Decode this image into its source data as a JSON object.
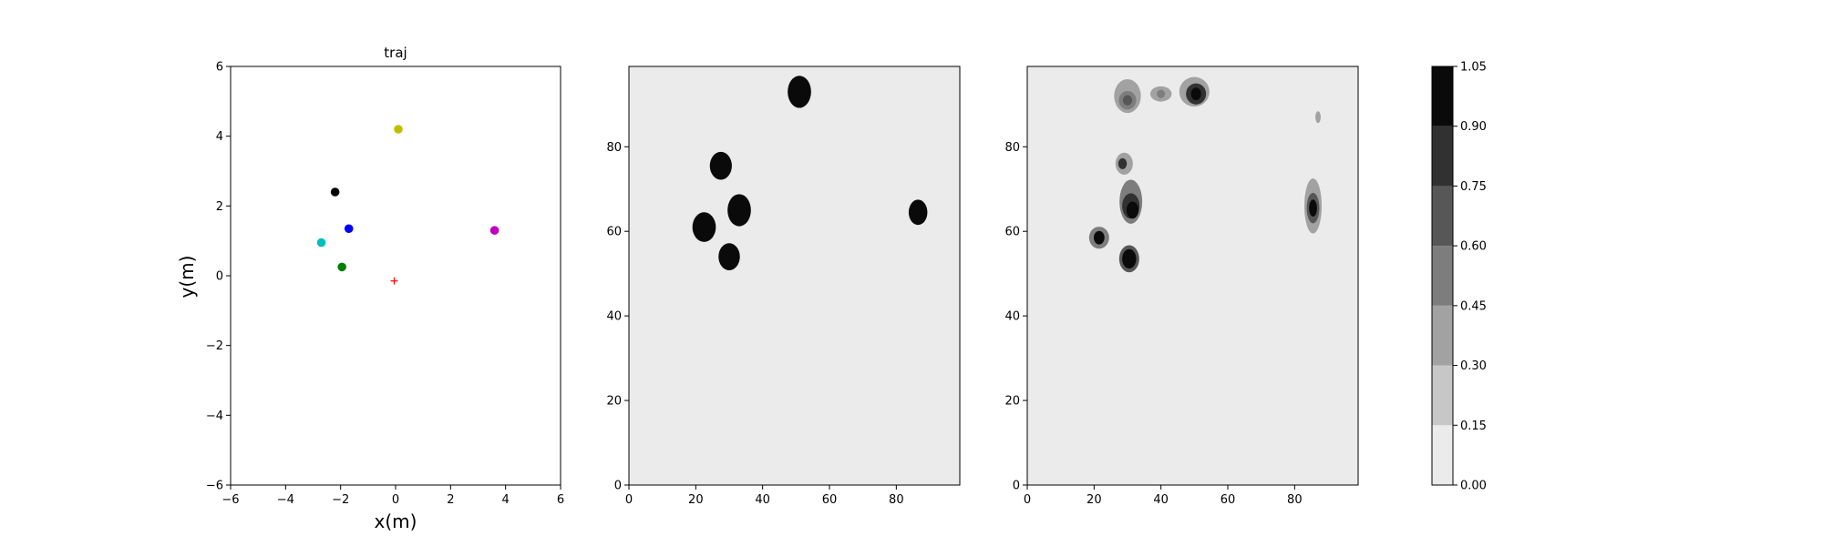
{
  "chart_data": [
    {
      "type": "scatter",
      "title": "traj",
      "xlabel": "x(m)",
      "ylabel": "y(m)",
      "xlim": [
        -6,
        6
      ],
      "ylim": [
        -6,
        6
      ],
      "xticks": [
        -6,
        -4,
        -2,
        0,
        2,
        4,
        6
      ],
      "yticks": [
        -6,
        -4,
        -2,
        0,
        2,
        4,
        6
      ],
      "points": [
        {
          "x": 0.1,
          "y": 4.2,
          "color": "#bfbf00",
          "marker": "dot"
        },
        {
          "x": -2.2,
          "y": 2.4,
          "color": "#000000",
          "marker": "dot"
        },
        {
          "x": -1.7,
          "y": 1.35,
          "color": "#0000ff",
          "marker": "dot"
        },
        {
          "x": -2.7,
          "y": 0.95,
          "color": "#00bfbf",
          "marker": "dot"
        },
        {
          "x": -1.95,
          "y": 0.25,
          "color": "#008000",
          "marker": "dot"
        },
        {
          "x": 3.6,
          "y": 1.3,
          "color": "#bf00bf",
          "marker": "dot"
        },
        {
          "x": -0.05,
          "y": -0.15,
          "color": "#ff0000",
          "marker": "plus"
        }
      ]
    },
    {
      "type": "heatmap",
      "title": "",
      "xlim": [
        0,
        99
      ],
      "ylim": [
        0,
        99
      ],
      "xticks": [
        0,
        20,
        40,
        60,
        80
      ],
      "yticks": [
        0,
        20,
        40,
        60,
        80
      ],
      "background_level": 0.0,
      "blobs": [
        {
          "x": 51,
          "y": 93,
          "rx": 3.5,
          "ry": 3.8,
          "level": 1.0
        },
        {
          "x": 27.5,
          "y": 75.5,
          "rx": 3.3,
          "ry": 3.3,
          "level": 1.0
        },
        {
          "x": 33,
          "y": 65,
          "rx": 3.5,
          "ry": 3.8,
          "level": 1.0
        },
        {
          "x": 22.5,
          "y": 61,
          "rx": 3.5,
          "ry": 3.5,
          "level": 1.0
        },
        {
          "x": 30,
          "y": 54,
          "rx": 3.2,
          "ry": 3.2,
          "level": 1.0
        },
        {
          "x": 86.5,
          "y": 64.5,
          "rx": 2.8,
          "ry": 3.0,
          "level": 1.0
        }
      ]
    },
    {
      "type": "heatmap",
      "title": "",
      "xlim": [
        0,
        99
      ],
      "ylim": [
        0,
        99
      ],
      "xticks": [
        0,
        20,
        40,
        60,
        80
      ],
      "yticks": [
        0,
        20,
        40,
        60,
        80
      ],
      "background_level": 0.0,
      "blobs": [
        {
          "x": 30,
          "y": 92,
          "rx": 4,
          "ry": 4,
          "level": 0.35
        },
        {
          "x": 30,
          "y": 91,
          "rx": 2.6,
          "ry": 2.2,
          "level": 0.55
        },
        {
          "x": 30,
          "y": 91,
          "rx": 1.4,
          "ry": 1.2,
          "level": 0.7
        },
        {
          "x": 40,
          "y": 92.5,
          "rx": 3.2,
          "ry": 1.8,
          "level": 0.3
        },
        {
          "x": 40,
          "y": 92.5,
          "rx": 1.2,
          "ry": 1.0,
          "level": 0.45
        },
        {
          "x": 50,
          "y": 93,
          "rx": 4.5,
          "ry": 3.5,
          "level": 0.35
        },
        {
          "x": 50.5,
          "y": 92.5,
          "rx": 3.0,
          "ry": 2.5,
          "level": 0.8
        },
        {
          "x": 50.5,
          "y": 92.5,
          "rx": 1.5,
          "ry": 1.5,
          "level": 1.0
        },
        {
          "x": 87,
          "y": 87,
          "rx": 0.8,
          "ry": 1.4,
          "level": 0.3
        },
        {
          "x": 29,
          "y": 76,
          "rx": 2.6,
          "ry": 2.6,
          "level": 0.4
        },
        {
          "x": 28.5,
          "y": 76,
          "rx": 1.3,
          "ry": 1.3,
          "level": 0.75
        },
        {
          "x": 30,
          "y": 71,
          "rx": 1.0,
          "ry": 1.0,
          "level": 0.2
        },
        {
          "x": 31,
          "y": 67,
          "rx": 3.4,
          "ry": 5.2,
          "level": 0.45
        },
        {
          "x": 31,
          "y": 66,
          "rx": 2.6,
          "ry": 3.0,
          "level": 0.75
        },
        {
          "x": 31.5,
          "y": 65,
          "rx": 1.8,
          "ry": 2.0,
          "level": 1.0
        },
        {
          "x": 85.5,
          "y": 66,
          "rx": 2.6,
          "ry": 6.5,
          "level": 0.4
        },
        {
          "x": 85.5,
          "y": 65.5,
          "rx": 1.9,
          "ry": 3.6,
          "level": 0.7
        },
        {
          "x": 85.5,
          "y": 65.5,
          "rx": 1.2,
          "ry": 2.0,
          "level": 0.9
        },
        {
          "x": 21.5,
          "y": 58.5,
          "rx": 3.0,
          "ry": 2.6,
          "level": 0.55
        },
        {
          "x": 21.5,
          "y": 58.5,
          "rx": 1.6,
          "ry": 1.6,
          "level": 0.95
        },
        {
          "x": 30.5,
          "y": 53.5,
          "rx": 3.0,
          "ry": 3.2,
          "level": 0.6
        },
        {
          "x": 30.5,
          "y": 53.5,
          "rx": 2.1,
          "ry": 2.3,
          "level": 1.0
        }
      ]
    },
    {
      "type": "colorbar",
      "title": "",
      "boundaries": [
        0.0,
        0.15,
        0.3,
        0.45,
        0.6,
        0.75,
        0.9,
        1.05
      ],
      "tick_labels": [
        "0.00",
        "0.15",
        "0.30",
        "0.45",
        "0.60",
        "0.75",
        "0.90",
        "1.05"
      ],
      "colors": [
        "#ebebeb",
        "#c7c7c7",
        "#a2a2a2",
        "#7d7d7d",
        "#575757",
        "#313131",
        "#0a0a0a"
      ]
    }
  ]
}
